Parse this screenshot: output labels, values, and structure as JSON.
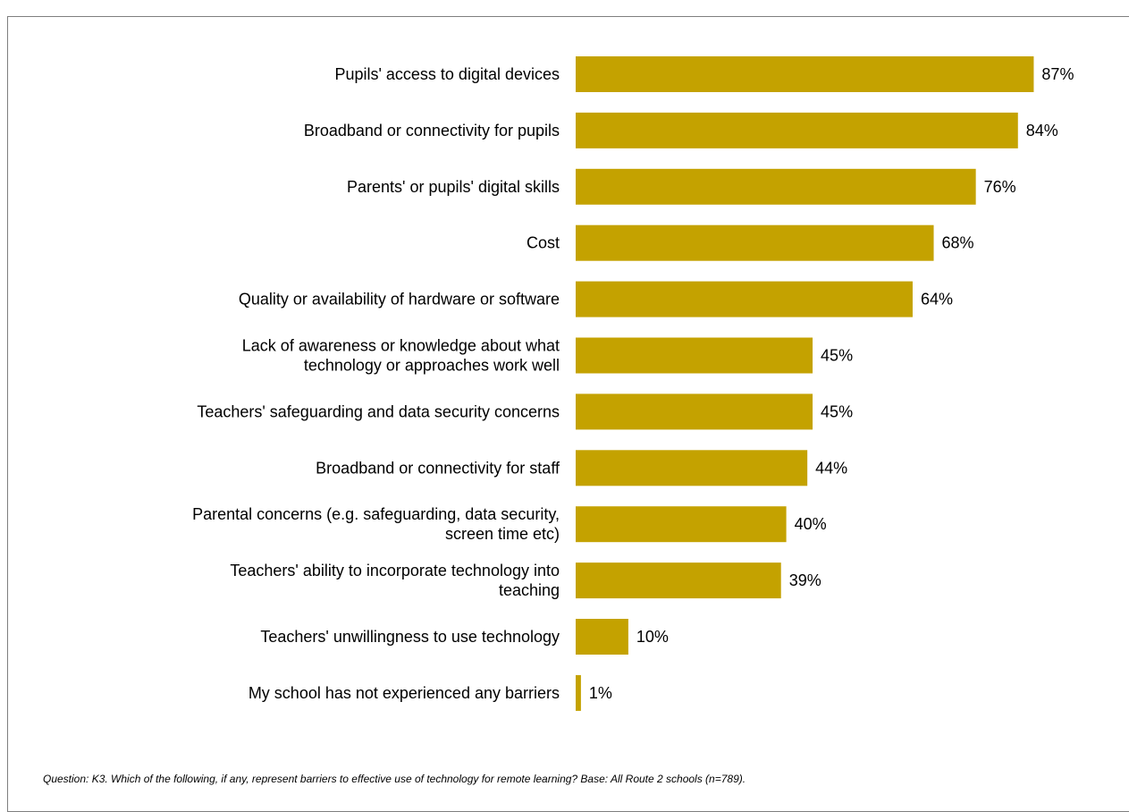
{
  "chart_data": {
    "type": "bar",
    "orientation": "horizontal",
    "bar_color": "#c4a200",
    "categories": [
      "Pupils' access to digital devices",
      "Broadband or connectivity for pupils",
      "Parents' or pupils' digital skills",
      "Cost",
      "Quality or availability of hardware or software",
      "Lack of awareness or knowledge about what technology or approaches work well",
      "Teachers' safeguarding and data security concerns",
      "Broadband or connectivity for staff",
      "Parental concerns (e.g. safeguarding, data security, screen time etc)",
      "Teachers' ability to incorporate technology into teaching",
      "Teachers' unwillingness to use technology",
      "My school has not experienced any barriers"
    ],
    "category_lines": [
      [
        "Pupils' access to digital devices"
      ],
      [
        "Broadband or connectivity for pupils"
      ],
      [
        "Parents' or pupils' digital skills"
      ],
      [
        "Cost"
      ],
      [
        "Quality or availability of hardware or software"
      ],
      [
        "Lack of awareness or knowledge about what",
        "technology or approaches work well"
      ],
      [
        "Teachers' safeguarding and data security concerns"
      ],
      [
        "Broadband or connectivity for staff"
      ],
      [
        "Parental concerns (e.g. safeguarding, data security,",
        "screen time etc)"
      ],
      [
        "Teachers' ability to incorporate technology into",
        "teaching"
      ],
      [
        "Teachers' unwillingness to use technology"
      ],
      [
        "My school has not experienced any barriers"
      ]
    ],
    "values": [
      87,
      84,
      76,
      68,
      64,
      45,
      45,
      44,
      40,
      39,
      10,
      1
    ],
    "data_labels": [
      "87%",
      "84%",
      "76%",
      "68%",
      "64%",
      "45%",
      "45%",
      "44%",
      "40%",
      "39%",
      "10%",
      "1%"
    ],
    "unit": "%",
    "xlim": [
      0,
      100
    ],
    "grid": false,
    "legend": "none"
  },
  "footnote": "Question: K3. Which of the following, if any, represent barriers to effective use of technology for remote learning? Base: All Route 2 schools (n=789)."
}
